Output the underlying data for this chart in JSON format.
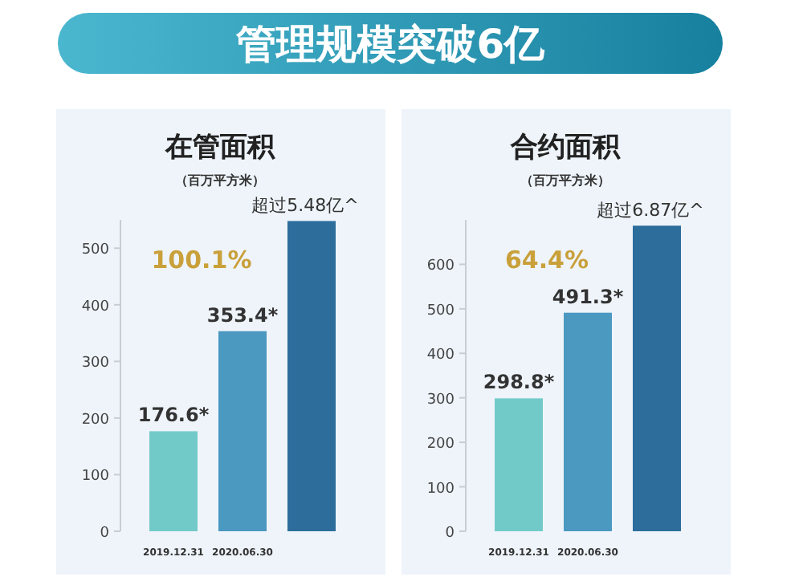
{
  "chart_data": [
    {
      "type": "other",
      "title": "管理规模突破6亿"
    },
    {
      "type": "bar",
      "title": "在管面积",
      "subtitle": "（百万平方米）",
      "categories": [
        "2019.12.31",
        "2020.06.30",
        null
      ],
      "values": [
        176.6,
        353.4,
        548
      ],
      "colors": [
        "#72cac8",
        "#4b98c1",
        "#2c6d9c"
      ],
      "value_labels": [
        "176.6*",
        "353.4*",
        "超过5.48亿^"
      ],
      "ylim": [
        0,
        550
      ],
      "yticks": [
        0,
        100,
        200,
        300,
        400,
        500
      ],
      "annotations": [
        "100.1%"
      ]
    },
    {
      "type": "bar",
      "title": "合约面积",
      "subtitle": "（百万平方米）",
      "categories": [
        "2019.12.31",
        "2020.06.30",
        null
      ],
      "values": [
        298.8,
        491.3,
        687
      ],
      "colors": [
        "#72cac8",
        "#4b98c1",
        "#2c6d9c"
      ],
      "value_labels": [
        "298.8*",
        "491.3*",
        "超过6.87亿^"
      ],
      "ylim": [
        0,
        700
      ],
      "yticks": [
        0,
        100,
        200,
        300,
        400,
        500,
        600
      ],
      "annotations": [
        "64.4%"
      ]
    }
  ]
}
